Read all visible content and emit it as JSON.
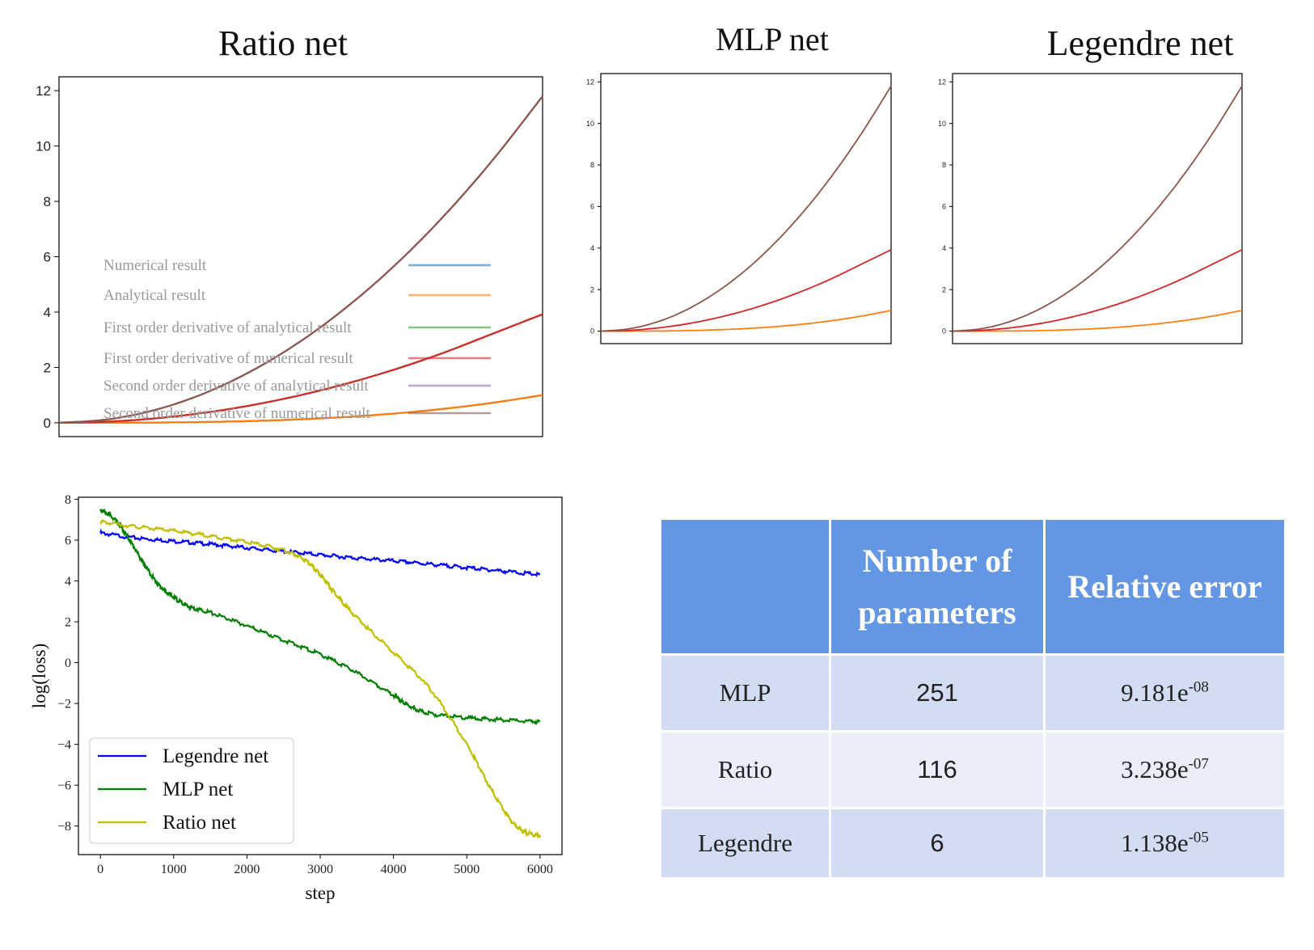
{
  "chart_data": [
    {
      "type": "line",
      "title": "Ratio net",
      "xlim": [
        0,
        1
      ],
      "ylim": [
        -0.5,
        12.5
      ],
      "yticks": [
        0,
        2,
        4,
        6,
        8,
        10,
        12
      ],
      "grid": false,
      "legend_position": "center-left",
      "series": [
        {
          "name": "Numerical result",
          "color": "#1f77b4",
          "x": [
            0,
            0.1,
            0.2,
            0.3,
            0.4,
            0.5,
            0.6,
            0.7,
            0.8,
            0.9,
            1.0
          ],
          "values": [
            0,
            0.001,
            0.008,
            0.027,
            0.064,
            0.125,
            0.216,
            0.343,
            0.512,
            0.729,
            1.0
          ]
        },
        {
          "name": "Analytical result",
          "color": "#ff7f0e",
          "x": [
            0,
            0.1,
            0.2,
            0.3,
            0.4,
            0.5,
            0.6,
            0.7,
            0.8,
            0.9,
            1.0
          ],
          "values": [
            0,
            0.001,
            0.008,
            0.027,
            0.064,
            0.125,
            0.216,
            0.343,
            0.512,
            0.729,
            1.0
          ]
        },
        {
          "name": "First order derivative of analytical result",
          "color": "#2ca02c",
          "x": [
            0,
            0.1,
            0.2,
            0.3,
            0.4,
            0.5,
            0.6,
            0.7,
            0.8,
            0.9,
            1.0
          ],
          "values": [
            0,
            0.04,
            0.16,
            0.36,
            0.64,
            1.0,
            1.44,
            1.96,
            2.56,
            3.24,
            3.92
          ]
        },
        {
          "name": "First order derivative of numerical result",
          "color": "#d62728",
          "x": [
            0,
            0.1,
            0.2,
            0.3,
            0.4,
            0.5,
            0.6,
            0.7,
            0.8,
            0.9,
            1.0
          ],
          "values": [
            0,
            0.04,
            0.16,
            0.36,
            0.64,
            1.0,
            1.44,
            1.96,
            2.56,
            3.24,
            3.92
          ]
        },
        {
          "name": "Second order derivative of analytical result",
          "color": "#9467bd",
          "x": [
            0,
            0.1,
            0.2,
            0.3,
            0.4,
            0.5,
            0.6,
            0.7,
            0.8,
            0.9,
            1.0
          ],
          "values": [
            0,
            0.12,
            0.47,
            1.06,
            1.89,
            2.95,
            4.25,
            5.78,
            7.55,
            9.56,
            11.8
          ]
        },
        {
          "name": "Second order derivative of numerical result",
          "color": "#8c564b",
          "x": [
            0,
            0.1,
            0.2,
            0.3,
            0.4,
            0.5,
            0.6,
            0.7,
            0.8,
            0.9,
            1.0
          ],
          "values": [
            0,
            0.12,
            0.47,
            1.06,
            1.89,
            2.95,
            4.25,
            5.78,
            7.55,
            9.56,
            11.8
          ]
        }
      ]
    },
    {
      "type": "line",
      "title": "MLP net",
      "xlim": [
        0,
        1
      ],
      "ylim": [
        -0.6,
        12.4
      ],
      "yticks": [
        0,
        2,
        4,
        6,
        8,
        10,
        12
      ],
      "grid": false,
      "series": [
        {
          "color": "#ff7f0e",
          "x": [
            0,
            0.1,
            0.2,
            0.3,
            0.4,
            0.5,
            0.6,
            0.7,
            0.8,
            0.9,
            1.0
          ],
          "values": [
            0,
            0.001,
            0.008,
            0.027,
            0.064,
            0.125,
            0.216,
            0.343,
            0.512,
            0.729,
            1.0
          ]
        },
        {
          "color": "#d62728",
          "x": [
            0,
            0.1,
            0.2,
            0.3,
            0.4,
            0.5,
            0.6,
            0.7,
            0.8,
            0.9,
            1.0
          ],
          "values": [
            0,
            0.04,
            0.16,
            0.36,
            0.64,
            1.0,
            1.44,
            1.96,
            2.56,
            3.24,
            3.92
          ]
        },
        {
          "color": "#8c564b",
          "x": [
            0,
            0.1,
            0.2,
            0.3,
            0.4,
            0.5,
            0.6,
            0.7,
            0.8,
            0.9,
            1.0
          ],
          "values": [
            0,
            0.12,
            0.47,
            1.06,
            1.89,
            2.95,
            4.25,
            5.78,
            7.55,
            9.56,
            11.8
          ]
        }
      ]
    },
    {
      "type": "line",
      "title": "Legendre net",
      "xlim": [
        0,
        1
      ],
      "ylim": [
        -0.6,
        12.4
      ],
      "yticks": [
        0,
        2,
        4,
        6,
        8,
        10,
        12
      ],
      "grid": false,
      "series": [
        {
          "color": "#ff7f0e",
          "x": [
            0,
            0.1,
            0.2,
            0.3,
            0.4,
            0.5,
            0.6,
            0.7,
            0.8,
            0.9,
            1.0
          ],
          "values": [
            0,
            0.001,
            0.008,
            0.027,
            0.064,
            0.125,
            0.216,
            0.343,
            0.512,
            0.729,
            1.0
          ]
        },
        {
          "color": "#d62728",
          "x": [
            0,
            0.1,
            0.2,
            0.3,
            0.4,
            0.5,
            0.6,
            0.7,
            0.8,
            0.9,
            1.0
          ],
          "values": [
            0,
            0.04,
            0.16,
            0.36,
            0.64,
            1.0,
            1.44,
            1.96,
            2.56,
            3.24,
            3.92
          ]
        },
        {
          "color": "#8c564b",
          "x": [
            0,
            0.1,
            0.2,
            0.3,
            0.4,
            0.5,
            0.6,
            0.7,
            0.8,
            0.9,
            1.0
          ],
          "values": [
            0,
            0.12,
            0.47,
            1.06,
            1.89,
            2.95,
            4.25,
            5.78,
            7.55,
            9.56,
            11.8
          ]
        }
      ]
    },
    {
      "type": "line",
      "xlabel": "step",
      "ylabel": "log(loss)",
      "xlim": [
        -300,
        6300
      ],
      "ylim": [
        -9.4,
        8.1
      ],
      "xticks": [
        0,
        1000,
        2000,
        3000,
        4000,
        5000,
        6000
      ],
      "yticks": [
        -8,
        -6,
        -4,
        -2,
        0,
        2,
        4,
        6,
        8
      ],
      "grid": false,
      "legend_position": "lower-left",
      "series": [
        {
          "name": "Legendre net",
          "color": "#0000ff",
          "x": [
            0,
            500,
            1000,
            1500,
            2000,
            2500,
            3000,
            3500,
            4000,
            4500,
            5000,
            5500,
            6000
          ],
          "values": [
            6.35,
            6.1,
            5.95,
            5.8,
            5.62,
            5.45,
            5.28,
            5.12,
            4.98,
            4.82,
            4.65,
            4.48,
            4.3
          ]
        },
        {
          "name": "MLP net",
          "color": "#008000",
          "x": [
            0,
            200,
            400,
            600,
            800,
            1000,
            1200,
            1500,
            2000,
            2500,
            3000,
            3500,
            4000,
            4200,
            4500,
            5000,
            5500,
            6000
          ],
          "values": [
            7.5,
            7.0,
            6.0,
            4.8,
            3.8,
            3.2,
            2.75,
            2.45,
            1.8,
            1.1,
            0.4,
            -0.5,
            -1.6,
            -2.1,
            -2.5,
            -2.7,
            -2.8,
            -2.9
          ]
        },
        {
          "name": "Ratio net",
          "color": "#bfbf00",
          "x": [
            0,
            500,
            1000,
            1500,
            2000,
            2500,
            2800,
            3000,
            3200,
            3500,
            4000,
            4500,
            5000,
            5300,
            5600,
            5800,
            6000
          ],
          "values": [
            6.9,
            6.65,
            6.45,
            6.2,
            5.9,
            5.5,
            5.0,
            4.3,
            3.4,
            2.2,
            0.5,
            -1.3,
            -4.0,
            -6.0,
            -7.7,
            -8.3,
            -8.5
          ]
        }
      ]
    }
  ],
  "table": {
    "headers": [
      "",
      "Number of parameters",
      "Relative error"
    ],
    "rows": [
      {
        "model": "MLP",
        "params": "251",
        "error_base": "9.181e",
        "error_exp": "-08"
      },
      {
        "model": "Ratio",
        "params": "116",
        "error_base": "3.238e",
        "error_exp": "-07"
      },
      {
        "model": "Legendre",
        "params": "6",
        "error_base": "1.138e",
        "error_exp": "-05"
      }
    ]
  }
}
